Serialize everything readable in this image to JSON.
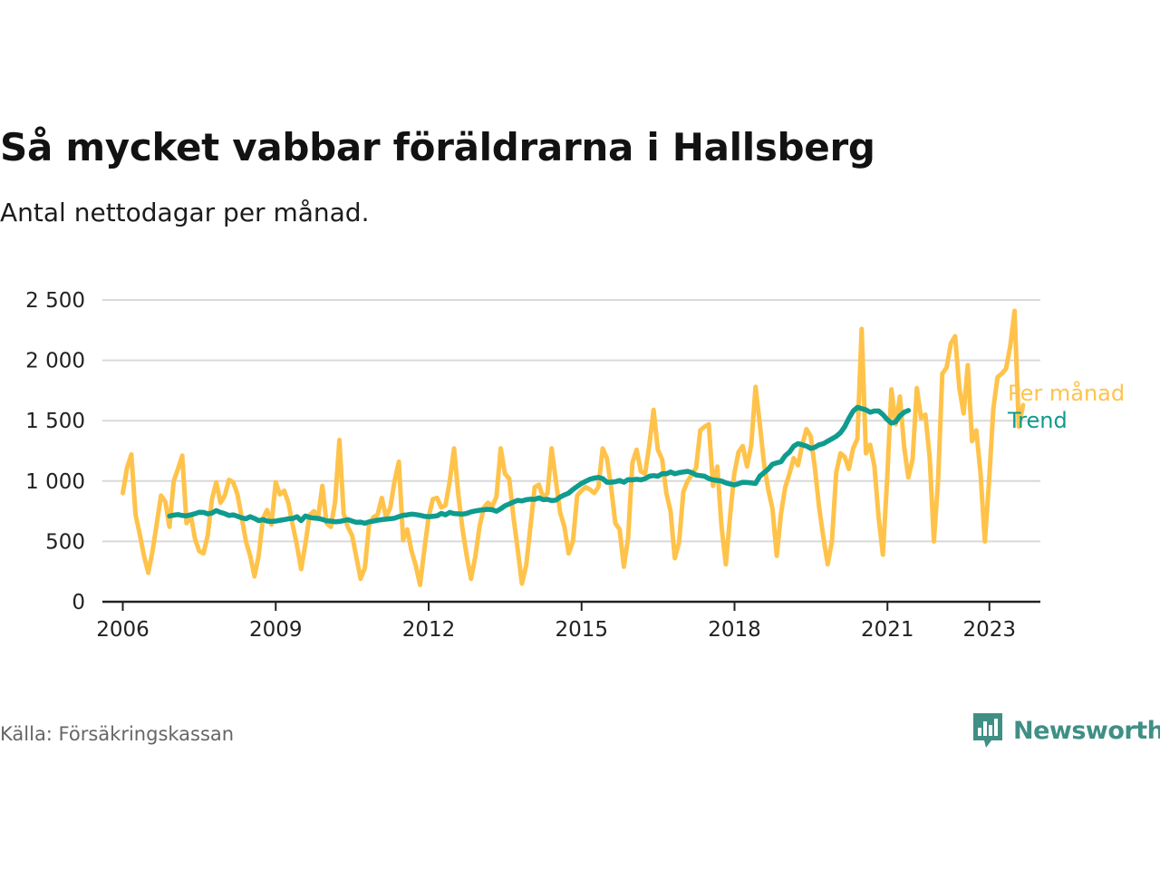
{
  "title": "Så mycket vabbar föräldrarna i Hallsberg",
  "subtitle": "Antal nettodagar per månad.",
  "source": "Källa: Försäkringskassan",
  "brand": {
    "name": "Newsworthy",
    "color": "#3f8f85",
    "icon": "newsworthy-chart-icon"
  },
  "colors": {
    "monthly": "#ffc34b",
    "trend": "#0f9b8e",
    "grid": "#d9d9d9",
    "axis": "#222222"
  },
  "chart_data": {
    "type": "line",
    "title": "Så mycket vabbar föräldrarna i Hallsberg",
    "subtitle": "Antal nettodagar per månad.",
    "xlabel": "",
    "ylabel": "",
    "xlim": [
      2005.6,
      2024.0
    ],
    "ylim": [
      0,
      2500
    ],
    "yticks": [
      0,
      500,
      1000,
      1500,
      2000,
      2500
    ],
    "ytick_labels": [
      "0",
      "500",
      "1 000",
      "1 500",
      "2 000",
      "2 500"
    ],
    "xticks": [
      2006,
      2009,
      2012,
      2015,
      2018,
      2021,
      2023
    ],
    "xtick_labels": [
      "2006",
      "2009",
      "2012",
      "2015",
      "2018",
      "2021",
      "2023"
    ],
    "grid": true,
    "legend": "inline-right",
    "x_unit": "year",
    "series": [
      {
        "name": "Per månad",
        "x_start": 2006.0,
        "x_step": 0.0833,
        "values": [
          900,
          1110,
          1220,
          720,
          560,
          380,
          240,
          420,
          650,
          880,
          830,
          620,
          1000,
          1100,
          1210,
          650,
          720,
          520,
          420,
          400,
          550,
          850,
          990,
          820,
          880,
          1010,
          990,
          890,
          700,
          500,
          380,
          210,
          380,
          690,
          760,
          640,
          990,
          890,
          920,
          820,
          640,
          470,
          270,
          480,
          720,
          750,
          700,
          960,
          650,
          620,
          830,
          1340,
          730,
          620,
          550,
          370,
          190,
          280,
          640,
          700,
          720,
          860,
          700,
          780,
          1000,
          1160,
          510,
          600,
          420,
          300,
          140,
          430,
          700,
          850,
          860,
          780,
          800,
          1000,
          1270,
          890,
          600,
          380,
          190,
          370,
          620,
          780,
          820,
          790,
          870,
          1270,
          1060,
          1020,
          700,
          430,
          150,
          300,
          620,
          950,
          970,
          860,
          900,
          1270,
          1000,
          740,
          620,
          400,
          500,
          880,
          920,
          950,
          930,
          900,
          950,
          1270,
          1190,
          950,
          650,
          600,
          290,
          530,
          1150,
          1260,
          1080,
          1060,
          1300,
          1590,
          1260,
          1180,
          900,
          750,
          360,
          490,
          910,
          1000,
          1050,
          1110,
          1420,
          1450,
          1470,
          960,
          1120,
          620,
          310,
          700,
          1060,
          1240,
          1290,
          1120,
          1300,
          1780,
          1480,
          1150,
          930,
          770,
          380,
          730,
          950,
          1060,
          1190,
          1130,
          1300,
          1430,
          1370,
          1100,
          780,
          530,
          310,
          500,
          1070,
          1230,
          1200,
          1100,
          1270,
          1350,
          2260,
          1230,
          1300,
          1120,
          700,
          390,
          1010,
          1760,
          1470,
          1700,
          1280,
          1030,
          1180,
          1770,
          1520,
          1550,
          1200,
          500,
          1000,
          1890,
          1940,
          2140,
          2200,
          1770,
          1560,
          1960,
          1330,
          1420,
          1060,
          500,
          1000,
          1600,
          1860,
          1890,
          1930,
          2120,
          2410,
          1450,
          1630
        ]
      },
      {
        "name": "Trend",
        "x_start": 2006.917,
        "x_step": 0.0833,
        "values": [
          710,
          718,
          722,
          715,
          712,
          720,
          730,
          742,
          740,
          728,
          735,
          755,
          740,
          730,
          715,
          720,
          708,
          695,
          688,
          705,
          690,
          672,
          680,
          668,
          665,
          668,
          675,
          680,
          688,
          690,
          705,
          672,
          710,
          698,
          694,
          690,
          682,
          670,
          668,
          662,
          665,
          672,
          680,
          668,
          658,
          660,
          650,
          662,
          668,
          676,
          680,
          684,
          688,
          692,
          705,
          716,
          720,
          726,
          722,
          716,
          708,
          705,
          708,
          712,
          732,
          720,
          740,
          730,
          728,
          726,
          732,
          745,
          752,
          758,
          762,
          766,
          762,
          750,
          770,
          795,
          810,
          826,
          840,
          835,
          845,
          850,
          848,
          860,
          845,
          848,
          838,
          842,
          868,
          885,
          900,
          930,
          955,
          980,
          998,
          1015,
          1025,
          1030,
          1020,
          990,
          990,
          995,
          1005,
          990,
          1012,
          1010,
          1015,
          1010,
          1020,
          1040,
          1045,
          1040,
          1060,
          1060,
          1075,
          1060,
          1070,
          1075,
          1080,
          1070,
          1050,
          1045,
          1040,
          1020,
          1010,
          1005,
          1000,
          985,
          975,
          968,
          978,
          990,
          988,
          984,
          980,
          1040,
          1070,
          1100,
          1140,
          1150,
          1160,
          1210,
          1240,
          1290,
          1310,
          1300,
          1290,
          1270,
          1280,
          1300,
          1310,
          1330,
          1350,
          1370,
          1400,
          1450,
          1520,
          1580,
          1610,
          1600,
          1590,
          1570,
          1580,
          1580,
          1550,
          1510,
          1480,
          1490,
          1540,
          1570,
          1585
        ]
      }
    ]
  }
}
